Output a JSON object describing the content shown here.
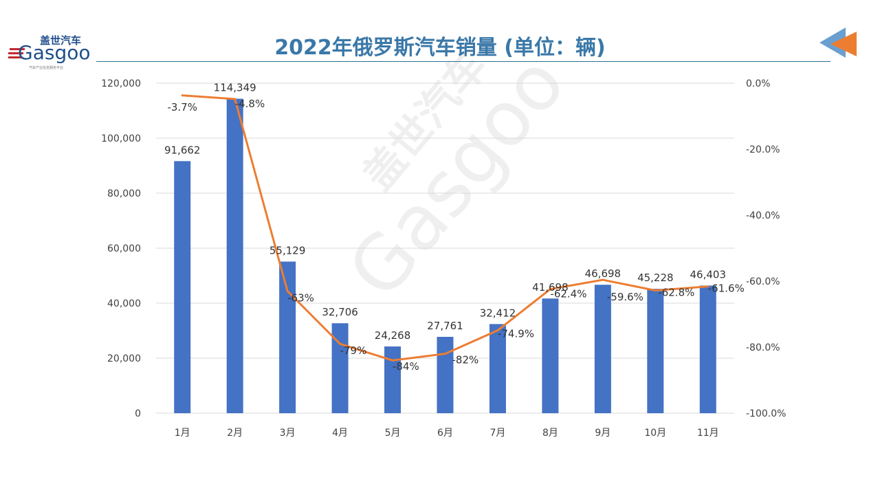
{
  "header": {
    "title": "2022年俄罗斯汽车销量 (单位：辆)",
    "logo_text": "盖世汽车 Gasgoo",
    "logo_tagline": "汽车产业信息服务平台"
  },
  "colors": {
    "bar": "#4472c4",
    "line": "#ed7d31",
    "title": "#3a78a8",
    "grid": "#d9d9d9"
  },
  "chart_data": {
    "type": "bar",
    "categories": [
      "1月",
      "2月",
      "3月",
      "4月",
      "5月",
      "6月",
      "7月",
      "8月",
      "9月",
      "10月",
      "11月"
    ],
    "series": [
      {
        "type": "bar",
        "axis": "left",
        "values": [
          91662,
          114349,
          55129,
          32706,
          24268,
          27761,
          32412,
          41698,
          46698,
          45228,
          46403
        ],
        "labels": [
          "91,662",
          "114,349",
          "55,129",
          "32,706",
          "24,268",
          "27,761",
          "32,412",
          "41,698",
          "46,698",
          "45,228",
          "46,403"
        ]
      },
      {
        "type": "line",
        "axis": "right",
        "values": [
          -3.7,
          -4.8,
          -63,
          -79,
          -84,
          -82,
          -74.9,
          -62.4,
          -59.6,
          -62.8,
          -61.6
        ],
        "labels": [
          "-3.7%",
          "-4.8%",
          "-63%",
          "-79%",
          "-84%",
          "-82%",
          "-74.9%",
          "-62.4%",
          "-59.6%",
          "-62.8%",
          "-61.6%"
        ]
      }
    ],
    "yleft": {
      "lim": [
        0,
        120000
      ],
      "ticks": [
        "0",
        "20,000",
        "40,000",
        "60,000",
        "80,000",
        "100,000",
        "120,000"
      ]
    },
    "yright": {
      "lim": [
        -100,
        0
      ],
      "ticks": [
        "-100.0%",
        "-80.0%",
        "-60.0%",
        "-40.0%",
        "-20.0%",
        "0.0%"
      ]
    },
    "grid": true,
    "watermark": "盖世汽车 Gasgoo"
  }
}
